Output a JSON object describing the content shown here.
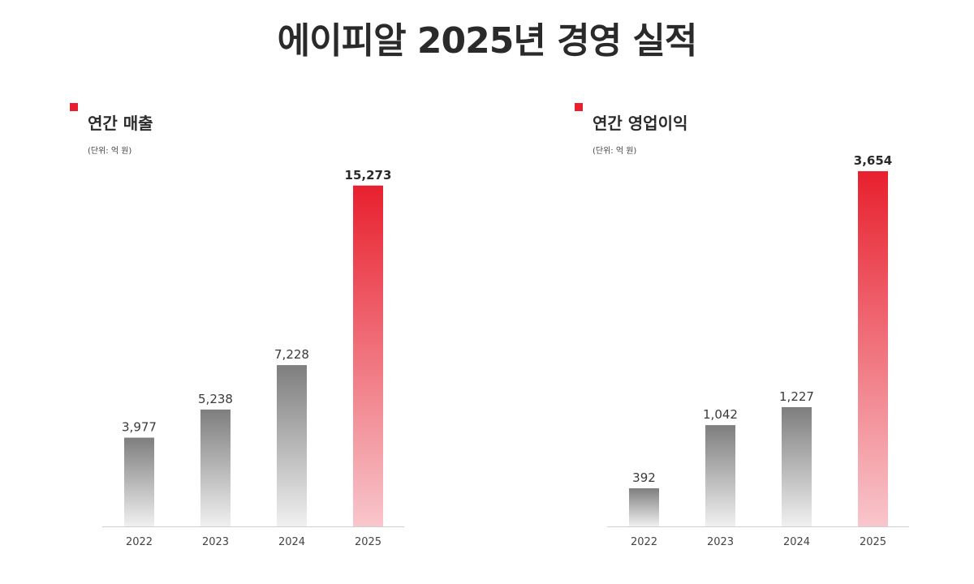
{
  "page_title": "에이피알 2025년 경영 실적",
  "colors": {
    "accent": "#e8202e",
    "accent_light": "#f8c6cc",
    "gray_dark": "#7e7e7e",
    "gray_light": "#f0f0f0",
    "axis": "#cfcfcf"
  },
  "chart_data": [
    {
      "type": "bar",
      "title": "연간 매출",
      "unit": "(단위: 억 원)",
      "categories": [
        "2022",
        "2023",
        "2024",
        "2025"
      ],
      "series": [
        {
          "values": [
            3977,
            5238,
            7228,
            15273
          ]
        }
      ],
      "value_labels": [
        "3,977",
        "5,238",
        "7,228",
        "15,273"
      ],
      "highlight_index": 3,
      "ylim": [
        0,
        16900
      ],
      "grid": false,
      "legend": "none"
    },
    {
      "type": "bar",
      "title": "연간 영업이익",
      "unit": "(단위: 억 원)",
      "categories": [
        "2022",
        "2023",
        "2024",
        "2025"
      ],
      "series": [
        {
          "values": [
            392,
            1042,
            1227,
            3654
          ]
        }
      ],
      "value_labels": [
        "392",
        "1,042",
        "1,227",
        "3,654"
      ],
      "highlight_index": 3,
      "ylim": [
        0,
        3880
      ],
      "grid": false,
      "legend": "none"
    }
  ]
}
